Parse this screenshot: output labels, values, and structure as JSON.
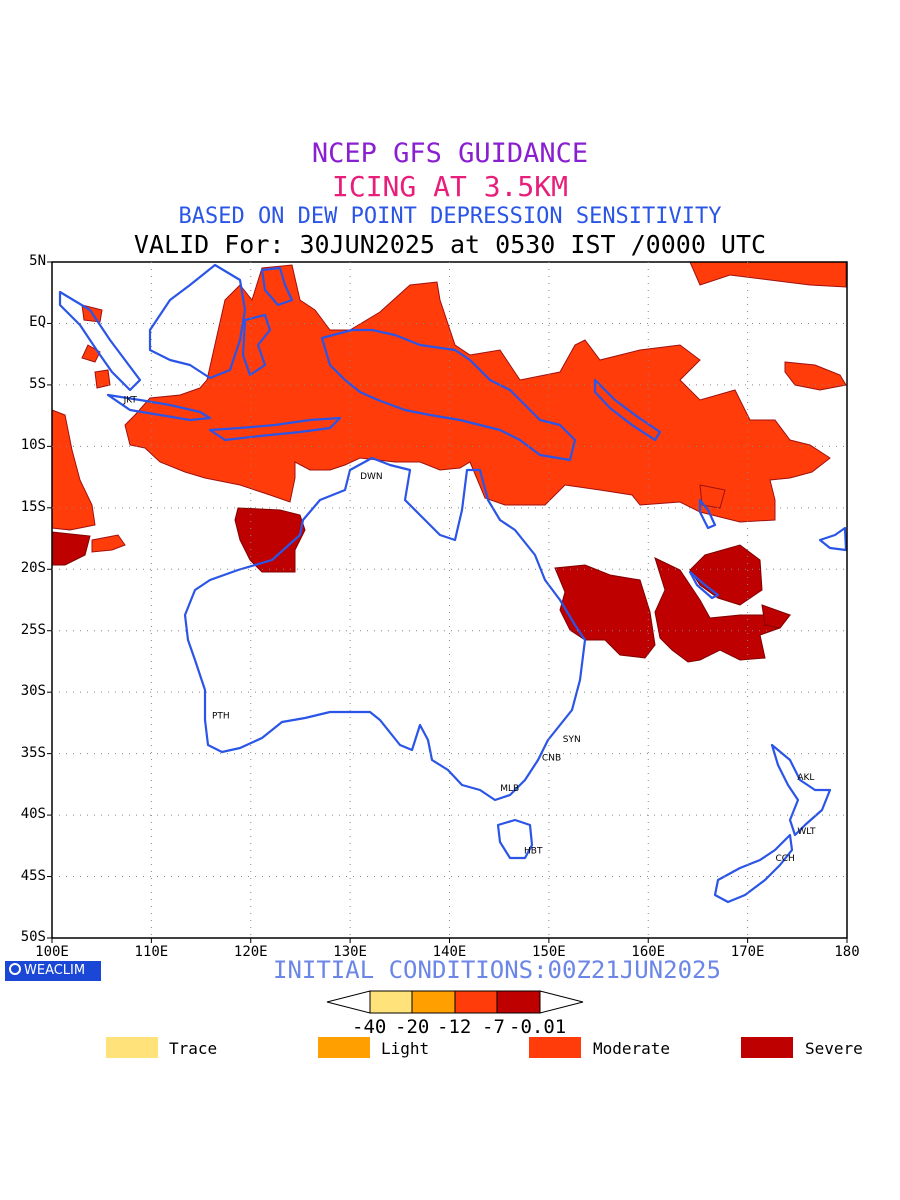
{
  "titles": {
    "line1": "NCEP GFS GUIDANCE",
    "line2": "ICING AT 3.5KM",
    "line3": "BASED ON DEW POINT DEPRESSION SENSITIVITY",
    "line4": "VALID For: 30JUN2025 at 0530 IST /0000 UTC"
  },
  "axes": {
    "lat_labels": [
      "5N",
      "EQ",
      "5S",
      "10S",
      "15S",
      "20S",
      "25S",
      "30S",
      "35S",
      "40S",
      "45S",
      "50S"
    ],
    "lon_labels": [
      "100E",
      "110E",
      "120E",
      "130E",
      "140E",
      "150E",
      "160E",
      "170E",
      "180"
    ]
  },
  "cities": [
    {
      "name": "JKT",
      "lon": 107.0,
      "lat": -6.2
    },
    {
      "name": "DWN",
      "lon": 130.8,
      "lat": -12.4
    },
    {
      "name": "PTH",
      "lon": 115.9,
      "lat": -31.9
    },
    {
      "name": "SYN",
      "lon": 151.2,
      "lat": -33.8
    },
    {
      "name": "CNB",
      "lon": 149.1,
      "lat": -35.3
    },
    {
      "name": "MLB",
      "lon": 144.9,
      "lat": -37.8
    },
    {
      "name": "HBT",
      "lon": 147.3,
      "lat": -42.9
    },
    {
      "name": "AKL",
      "lon": 174.8,
      "lat": -36.9
    },
    {
      "name": "WLT",
      "lon": 174.8,
      "lat": -41.3
    },
    {
      "name": "CCH",
      "lon": 172.6,
      "lat": -43.5
    }
  ],
  "logo": "WEACLIM",
  "initial_conditions": "INITIAL CONDITIONS:00Z21JUN2025",
  "colorbar": {
    "ticks": [
      "-40",
      "-20",
      "-12",
      "-7",
      "-0.01"
    ],
    "colors": [
      "#ffe27a",
      "#ff9f00",
      "#ff3c0a",
      "#be0000"
    ]
  },
  "legend": [
    {
      "label": "Trace",
      "color": "#ffe27a"
    },
    {
      "label": "Light",
      "color": "#ff9f00"
    },
    {
      "label": "Moderate",
      "color": "#ff3c0a"
    },
    {
      "label": "Severe",
      "color": "#be0000"
    }
  ],
  "colors": {
    "coast": "#2a55e6",
    "moderate": "#ff3c0a",
    "severe": "#be0000"
  }
}
